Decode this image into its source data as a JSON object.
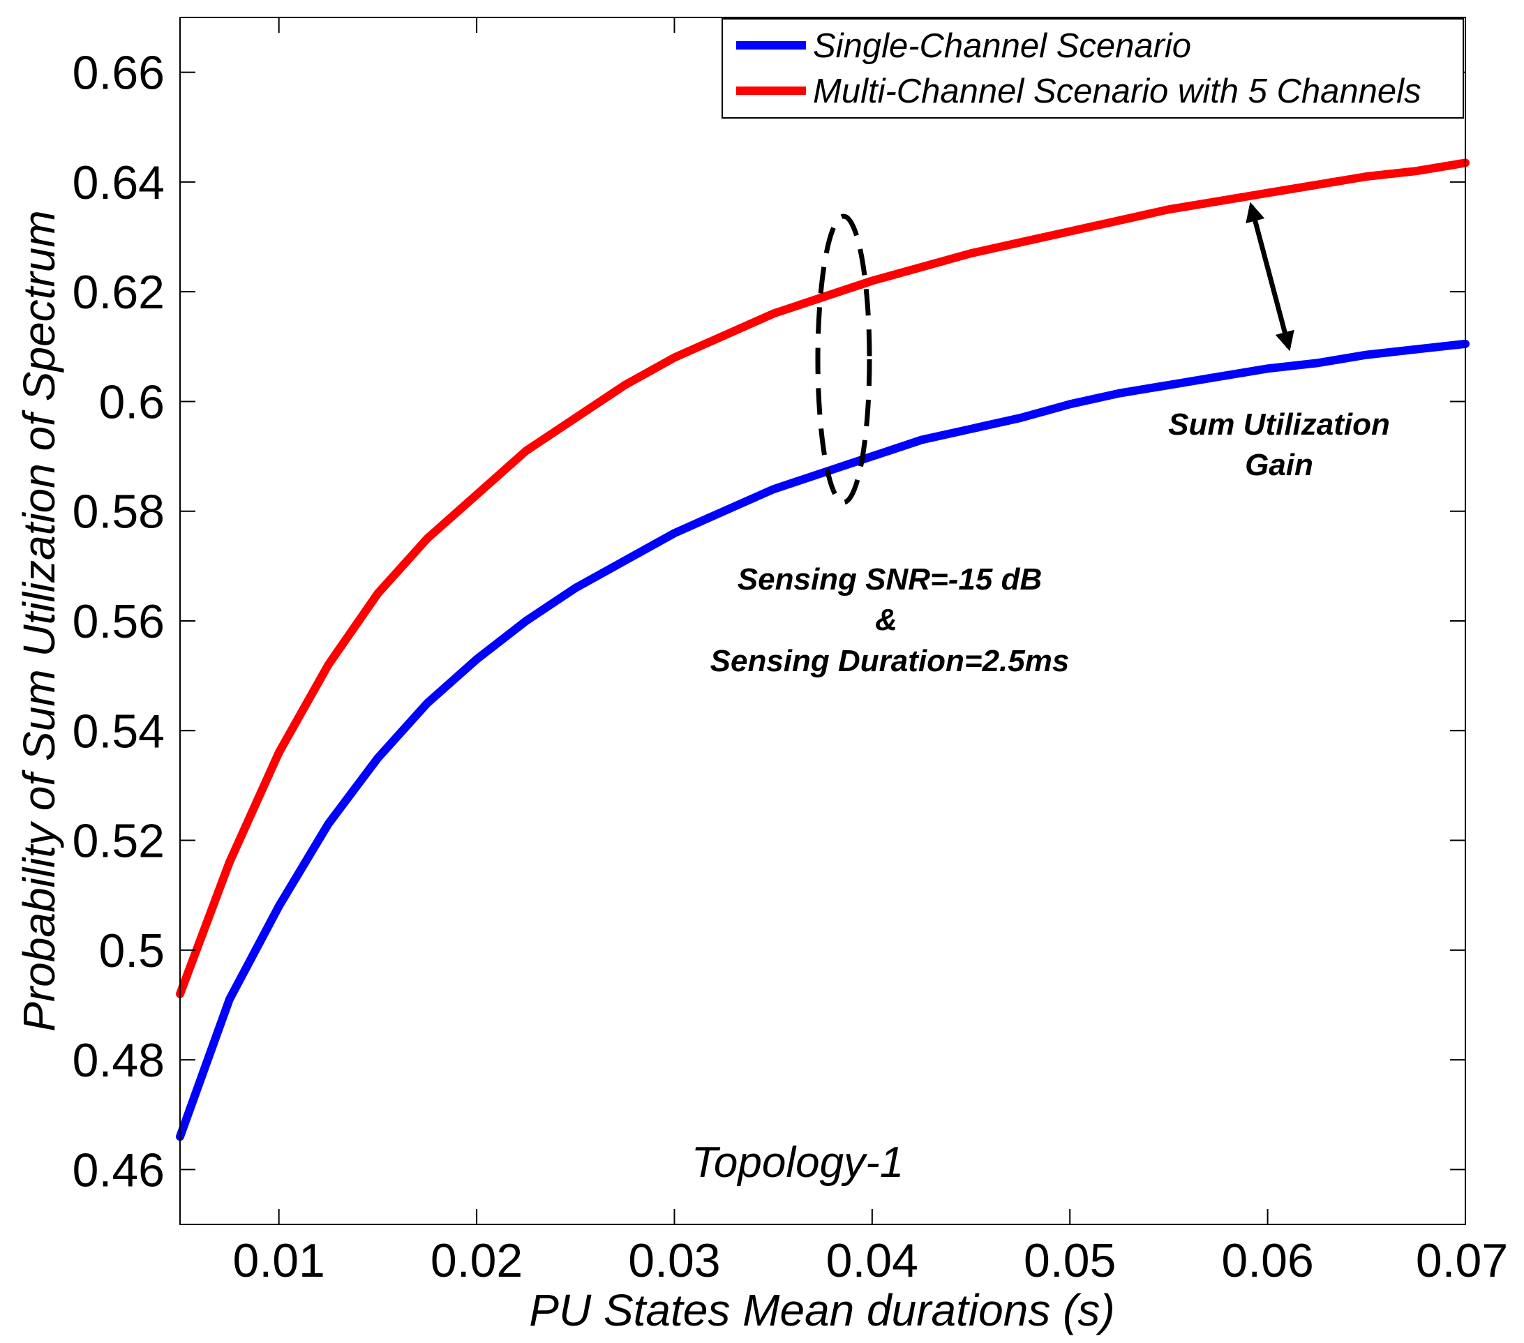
{
  "chart_data": {
    "type": "line",
    "title": "",
    "xlabel": "PU States Mean durations (s)",
    "ylabel": "Probability of Sum Utilization of Spectrum",
    "xlim": [
      0.005,
      0.07
    ],
    "ylim": [
      0.45,
      0.67
    ],
    "xticks": [
      0.01,
      0.02,
      0.03,
      0.04,
      0.05,
      0.06,
      0.07
    ],
    "xtick_labels": [
      "0.01",
      "0.02",
      "0.03",
      "0.04",
      "0.05",
      "0.06",
      "0.07"
    ],
    "yticks": [
      0.46,
      0.48,
      0.5,
      0.52,
      0.54,
      0.56,
      0.58,
      0.6,
      0.62,
      0.64,
      0.66
    ],
    "ytick_labels": [
      "0.46",
      "0.48",
      "0.5",
      "0.52",
      "0.54",
      "0.56",
      "0.58",
      "0.6",
      "0.62",
      "0.64",
      "0.66"
    ],
    "grid": false,
    "legend_position": "top-right",
    "series": [
      {
        "name": "Single-Channel Scenario",
        "color": "#0000ff",
        "x": [
          0.005,
          0.0075,
          0.01,
          0.0125,
          0.015,
          0.0175,
          0.02,
          0.0225,
          0.025,
          0.0275,
          0.03,
          0.0325,
          0.035,
          0.0375,
          0.04,
          0.0425,
          0.045,
          0.0475,
          0.05,
          0.0525,
          0.055,
          0.0575,
          0.06,
          0.0625,
          0.065,
          0.0675,
          0.07
        ],
        "y": [
          0.466,
          0.491,
          0.508,
          0.523,
          0.535,
          0.545,
          0.553,
          0.56,
          0.566,
          0.571,
          0.576,
          0.58,
          0.584,
          0.587,
          0.59,
          0.593,
          0.595,
          0.597,
          0.5995,
          0.6015,
          0.603,
          0.6045,
          0.606,
          0.607,
          0.6085,
          0.6095,
          0.6105
        ]
      },
      {
        "name": "Multi-Channel Scenario with 5 Channels",
        "color": "#ff0000",
        "x": [
          0.005,
          0.0075,
          0.01,
          0.0125,
          0.015,
          0.0175,
          0.02,
          0.0225,
          0.025,
          0.0275,
          0.03,
          0.0325,
          0.035,
          0.0375,
          0.04,
          0.0425,
          0.045,
          0.0475,
          0.05,
          0.0525,
          0.055,
          0.0575,
          0.06,
          0.0625,
          0.065,
          0.0675,
          0.07
        ],
        "y": [
          0.492,
          0.516,
          0.536,
          0.552,
          0.565,
          0.575,
          0.583,
          0.591,
          0.597,
          0.603,
          0.608,
          0.612,
          0.616,
          0.619,
          0.622,
          0.6245,
          0.627,
          0.629,
          0.631,
          0.633,
          0.635,
          0.6365,
          0.638,
          0.6395,
          0.641,
          0.642,
          0.6435
        ]
      }
    ],
    "annotations": {
      "gain_line1": "Sum Utilization",
      "gain_line2": "Gain",
      "sensing_line1": "Sensing SNR=-15 dB",
      "sensing_line2": "&",
      "sensing_line3": "Sensing Duration=2.5ms",
      "topology": "Topology-1"
    }
  }
}
